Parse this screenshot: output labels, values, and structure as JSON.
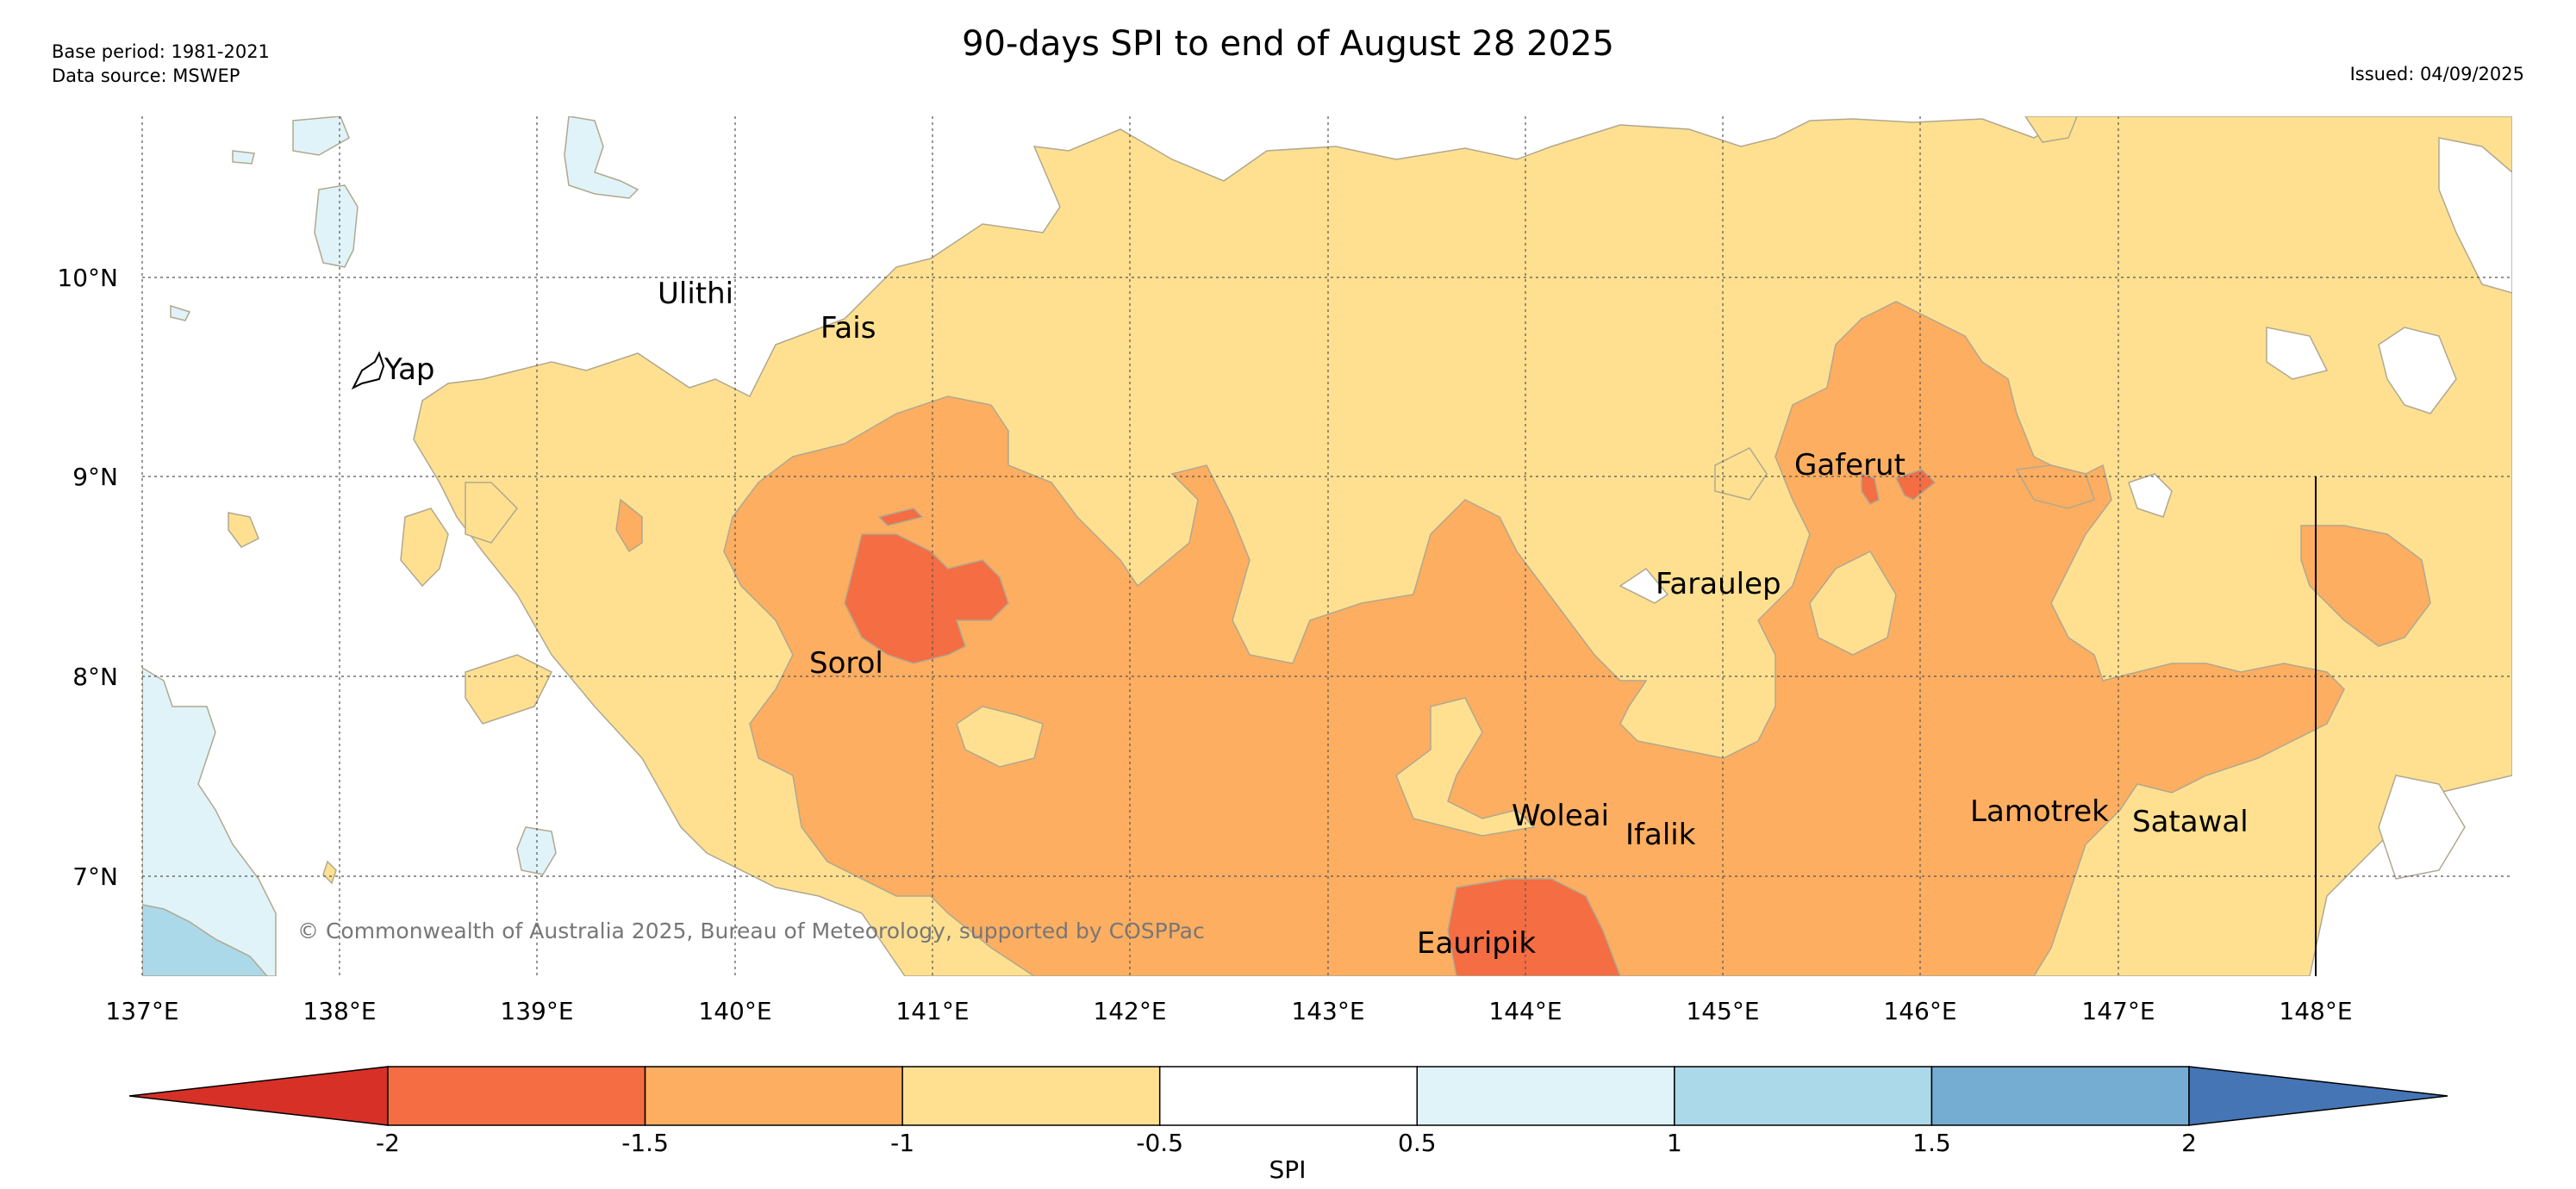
{
  "meta": {
    "base_period": "Base period: 1981-2021",
    "data_source": "Data source: MSWEP",
    "title": "90-days SPI to end of August 28 2025",
    "issued": "Issued: 04/09/2025",
    "copyright": "© Commonwealth of Australia 2025, Bureau of Meteorology, supported by COSPPac"
  },
  "map": {
    "lon_labels": [
      "137°E",
      "138°E",
      "139°E",
      "140°E",
      "141°E",
      "142°E",
      "143°E",
      "144°E",
      "145°E",
      "146°E",
      "147°E",
      "148°E"
    ],
    "lat_labels": [
      "10°N",
      "9°N",
      "8°N",
      "7°N"
    ],
    "places": [
      "Ulithi",
      "Fais",
      "Yap",
      "Gaferut",
      "Faraulep",
      "Sorol",
      "Woleai",
      "Ifalik",
      "Lamotrek",
      "Satawal",
      "Eauripik"
    ]
  },
  "colorbar": {
    "label": "SPI",
    "ticks": [
      "-2",
      "-1.5",
      "-1",
      "-0.5",
      "0.5",
      "1",
      "1.5",
      "2"
    ],
    "bins": [
      {
        "range": "< -2",
        "color": "#d73027"
      },
      {
        "range": "-2 to -1.5",
        "color": "#f46d43"
      },
      {
        "range": "-1.5 to -1",
        "color": "#fdae61"
      },
      {
        "range": "-1 to -0.5",
        "color": "#fee090"
      },
      {
        "range": "-0.5 to 0.5",
        "color": "#ffffff"
      },
      {
        "range": "0.5 to 1",
        "color": "#e0f3f8"
      },
      {
        "range": "1 to 1.5",
        "color": "#abd9e9"
      },
      {
        "range": "1.5 to 2",
        "color": "#74add1"
      },
      {
        "range": "> 2",
        "color": "#4575b4"
      }
    ]
  }
}
